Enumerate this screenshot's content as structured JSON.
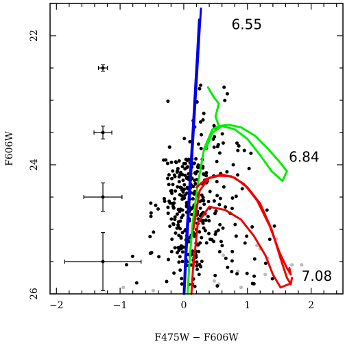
{
  "chart_data": {
    "type": "scatter",
    "title": "",
    "xlabel": "F475W − F606W",
    "ylabel": "F606W",
    "xlim": [
      -2.1,
      2.5
    ],
    "ylim": [
      26.0,
      21.5
    ],
    "y_inverted": true,
    "grid": false,
    "x_ticks": [
      "−2",
      "−1",
      "0",
      "1",
      "2"
    ],
    "x_tick_values": [
      -2,
      -1,
      0,
      1,
      2
    ],
    "y_ticks": [
      "22",
      "24",
      "26"
    ],
    "y_tick_values": [
      22,
      24,
      26
    ],
    "colors": {
      "blue": "#0000ee",
      "green": "#00ee00",
      "red": "#ee0000",
      "points": "#000000",
      "grey_points": "#bbbbbb"
    },
    "isochrones": [
      {
        "label": "6.55",
        "label_pos": [
          0.75,
          21.9
        ],
        "color": "blue",
        "curves": [
          [
            [
              0.27,
              21.58
            ],
            [
              0.25,
              21.9
            ],
            [
              0.22,
              22.4
            ],
            [
              0.19,
              22.9
            ],
            [
              0.16,
              23.4
            ],
            [
              0.13,
              23.9
            ],
            [
              0.1,
              24.4
            ],
            [
              0.07,
              24.9
            ],
            [
              0.04,
              25.4
            ],
            [
              0.01,
              26.0
            ]
          ],
          [
            [
              0.24,
              21.75
            ],
            [
              0.21,
              22.3
            ],
            [
              0.18,
              22.8
            ],
            [
              0.15,
              23.3
            ],
            [
              0.12,
              23.8
            ],
            [
              0.09,
              24.3
            ],
            [
              0.06,
              24.8
            ],
            [
              0.03,
              25.3
            ],
            [
              0.0,
              26.0
            ]
          ]
        ]
      },
      {
        "label": "6.84",
        "label_pos": [
          1.65,
          23.95
        ],
        "color": "green",
        "curves": [
          [
            [
              0.38,
              22.8
            ],
            [
              0.47,
              22.95
            ],
            [
              0.55,
              23.05
            ],
            [
              0.5,
              23.25
            ],
            [
              0.55,
              23.4
            ],
            [
              0.45,
              23.45
            ],
            [
              0.32,
              23.75
            ],
            [
              0.22,
              24.3
            ],
            [
              0.14,
              24.9
            ],
            [
              0.09,
              25.5
            ],
            [
              0.06,
              26.0
            ]
          ],
          [
            [
              0.35,
              23.75
            ],
            [
              0.45,
              23.5
            ],
            [
              0.6,
              23.4
            ],
            [
              0.8,
              23.45
            ],
            [
              1.0,
              23.6
            ],
            [
              1.2,
              23.85
            ],
            [
              1.38,
              24.1
            ],
            [
              1.55,
              24.25
            ],
            [
              1.62,
              24.1
            ],
            [
              1.5,
              23.95
            ],
            [
              1.32,
              23.75
            ],
            [
              1.12,
              23.55
            ],
            [
              0.9,
              23.42
            ],
            [
              0.7,
              23.38
            ],
            [
              0.55,
              23.4
            ]
          ]
        ]
      },
      {
        "label": "7.08",
        "label_pos": [
          1.85,
          25.8
        ],
        "color": "red",
        "curves": [
          [
            [
              0.15,
              25.0
            ],
            [
              0.25,
              24.4
            ],
            [
              0.4,
              24.2
            ],
            [
              0.6,
              24.15
            ],
            [
              0.8,
              24.2
            ],
            [
              1.0,
              24.35
            ],
            [
              1.2,
              24.6
            ],
            [
              1.38,
              25.0
            ],
            [
              1.52,
              25.45
            ],
            [
              1.62,
              25.75
            ],
            [
              1.68,
              25.85
            ],
            [
              1.7,
              25.75
            ]
          ],
          [
            [
              0.2,
              24.35
            ],
            [
              0.35,
              24.22
            ],
            [
              0.55,
              24.17
            ],
            [
              0.75,
              24.18
            ],
            [
              0.95,
              24.3
            ],
            [
              1.15,
              24.55
            ],
            [
              1.35,
              24.95
            ],
            [
              1.5,
              25.35
            ],
            [
              1.62,
              25.6
            ],
            [
              1.68,
              25.7
            ],
            [
              1.66,
              25.6
            ]
          ],
          [
            [
              0.15,
              25.6
            ],
            [
              0.22,
              24.9
            ],
            [
              0.4,
              24.65
            ],
            [
              0.65,
              24.7
            ],
            [
              0.9,
              24.85
            ],
            [
              1.1,
              25.1
            ],
            [
              1.28,
              25.4
            ],
            [
              1.4,
              25.7
            ],
            [
              1.52,
              25.9
            ],
            [
              1.65,
              25.85
            ]
          ],
          [
            [
              0.12,
              26.0
            ],
            [
              0.14,
              25.7
            ],
            [
              0.16,
              25.35
            ]
          ]
        ]
      }
    ],
    "error_bars": [
      {
        "x": -1.27,
        "y": 22.5,
        "xerr": 0.07,
        "yerr": 0.05
      },
      {
        "x": -1.27,
        "y": 23.5,
        "xerr": 0.14,
        "yerr": 0.1
      },
      {
        "x": -1.27,
        "y": 24.5,
        "xerr": 0.3,
        "yerr": 0.22
      },
      {
        "x": -1.27,
        "y": 25.5,
        "xerr": 0.6,
        "yerr": 0.45
      }
    ],
    "grey_points": [
      [
        1.45,
        25.15
      ],
      [
        1.32,
        25.45
      ],
      [
        1.15,
        25.25
      ],
      [
        1.2,
        25.3
      ],
      [
        0.85,
        25.65
      ],
      [
        0.9,
        25.9
      ],
      [
        0.55,
        25.85
      ],
      [
        0.48,
        25.8
      ],
      [
        -0.95,
        25.9
      ],
      [
        -0.48,
        25.95
      ],
      [
        1.85,
        25.55
      ],
      [
        1.7,
        25.55
      ],
      [
        1.28,
        25.7
      ],
      [
        0.62,
        25.4
      ]
    ],
    "random_seed": 12345,
    "points_clusters": [
      {
        "n": 230,
        "x_mean": 0.06,
        "x_sd": 0.18,
        "y_min": 23.8,
        "y_max": 25.95
      },
      {
        "n": 55,
        "x_mean": 0.32,
        "x_sd": 0.22,
        "y_min": 22.6,
        "y_max": 25.9
      },
      {
        "n": 45,
        "x_mean": 0.6,
        "x_sd": 0.25,
        "y_min": 23.5,
        "y_max": 25.9
      },
      {
        "n": 20,
        "x_mean": 1.05,
        "x_sd": 0.25,
        "y_min": 24.6,
        "y_max": 25.9
      },
      {
        "n": 15,
        "x_mean": -0.45,
        "x_sd": 0.22,
        "y_min": 24.5,
        "y_max": 25.95
      }
    ]
  }
}
